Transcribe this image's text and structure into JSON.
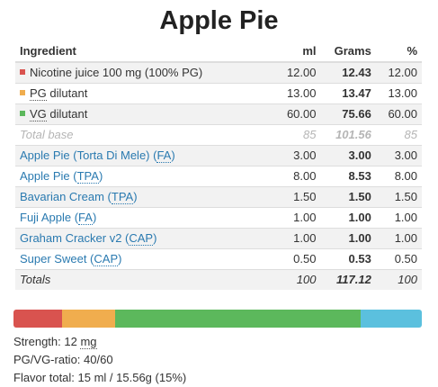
{
  "title": "Apple Pie",
  "headers": {
    "ingredient": "Ingredient",
    "ml": "ml",
    "grams": "Grams",
    "percent": "%"
  },
  "base_rows": [
    {
      "label_prefix": "Nicotine juice 100 mg (100% PG)",
      "abbr": "",
      "label_suffix": "",
      "ml": "12.00",
      "grams": "12.43",
      "percent": "12.00",
      "color": "#d9534f"
    },
    {
      "label_prefix": "",
      "abbr": "PG",
      "label_suffix": " dilutant",
      "ml": "13.00",
      "grams": "13.47",
      "percent": "13.00",
      "color": "#f0ad4e"
    },
    {
      "label_prefix": "",
      "abbr": "VG",
      "label_suffix": " dilutant",
      "ml": "60.00",
      "grams": "75.66",
      "percent": "60.00",
      "color": "#5cb85c"
    }
  ],
  "total_base": {
    "label": "Total base",
    "ml": "85",
    "grams": "101.56",
    "percent": "85"
  },
  "flavor_rows": [
    {
      "name": "Apple Pie (Torta Di Mele)",
      "abbr": "FA",
      "ml": "3.00",
      "grams": "3.00",
      "percent": "3.00"
    },
    {
      "name": "Apple Pie",
      "abbr": "TPA",
      "ml": "8.00",
      "grams": "8.53",
      "percent": "8.00"
    },
    {
      "name": "Bavarian Cream",
      "abbr": "TPA",
      "ml": "1.50",
      "grams": "1.50",
      "percent": "1.50"
    },
    {
      "name": "Fuji Apple",
      "abbr": "FA",
      "ml": "1.00",
      "grams": "1.00",
      "percent": "1.00"
    },
    {
      "name": "Graham Cracker v2",
      "abbr": "CAP",
      "ml": "1.00",
      "grams": "1.00",
      "percent": "1.00"
    },
    {
      "name": "Super Sweet",
      "abbr": "CAP",
      "ml": "0.50",
      "grams": "0.53",
      "percent": "0.50"
    }
  ],
  "totals": {
    "label": "Totals",
    "ml": "100",
    "grams": "117.12",
    "percent": "100"
  },
  "composition_bar": [
    {
      "name": "nicotine",
      "percent": 12,
      "color": "#d9534f"
    },
    {
      "name": "pg",
      "percent": 13,
      "color": "#f0ad4e"
    },
    {
      "name": "vg",
      "percent": 60,
      "color": "#5cb85c"
    },
    {
      "name": "flavor",
      "percent": 15,
      "color": "#5bc0de"
    }
  ],
  "info": {
    "strength_label": "Strength: 12 ",
    "strength_unit": "mg",
    "ratio": "PG/VG-ratio: 40/60",
    "flavor_total": "Flavor total: 15 ml / 15.56g (15%)"
  }
}
